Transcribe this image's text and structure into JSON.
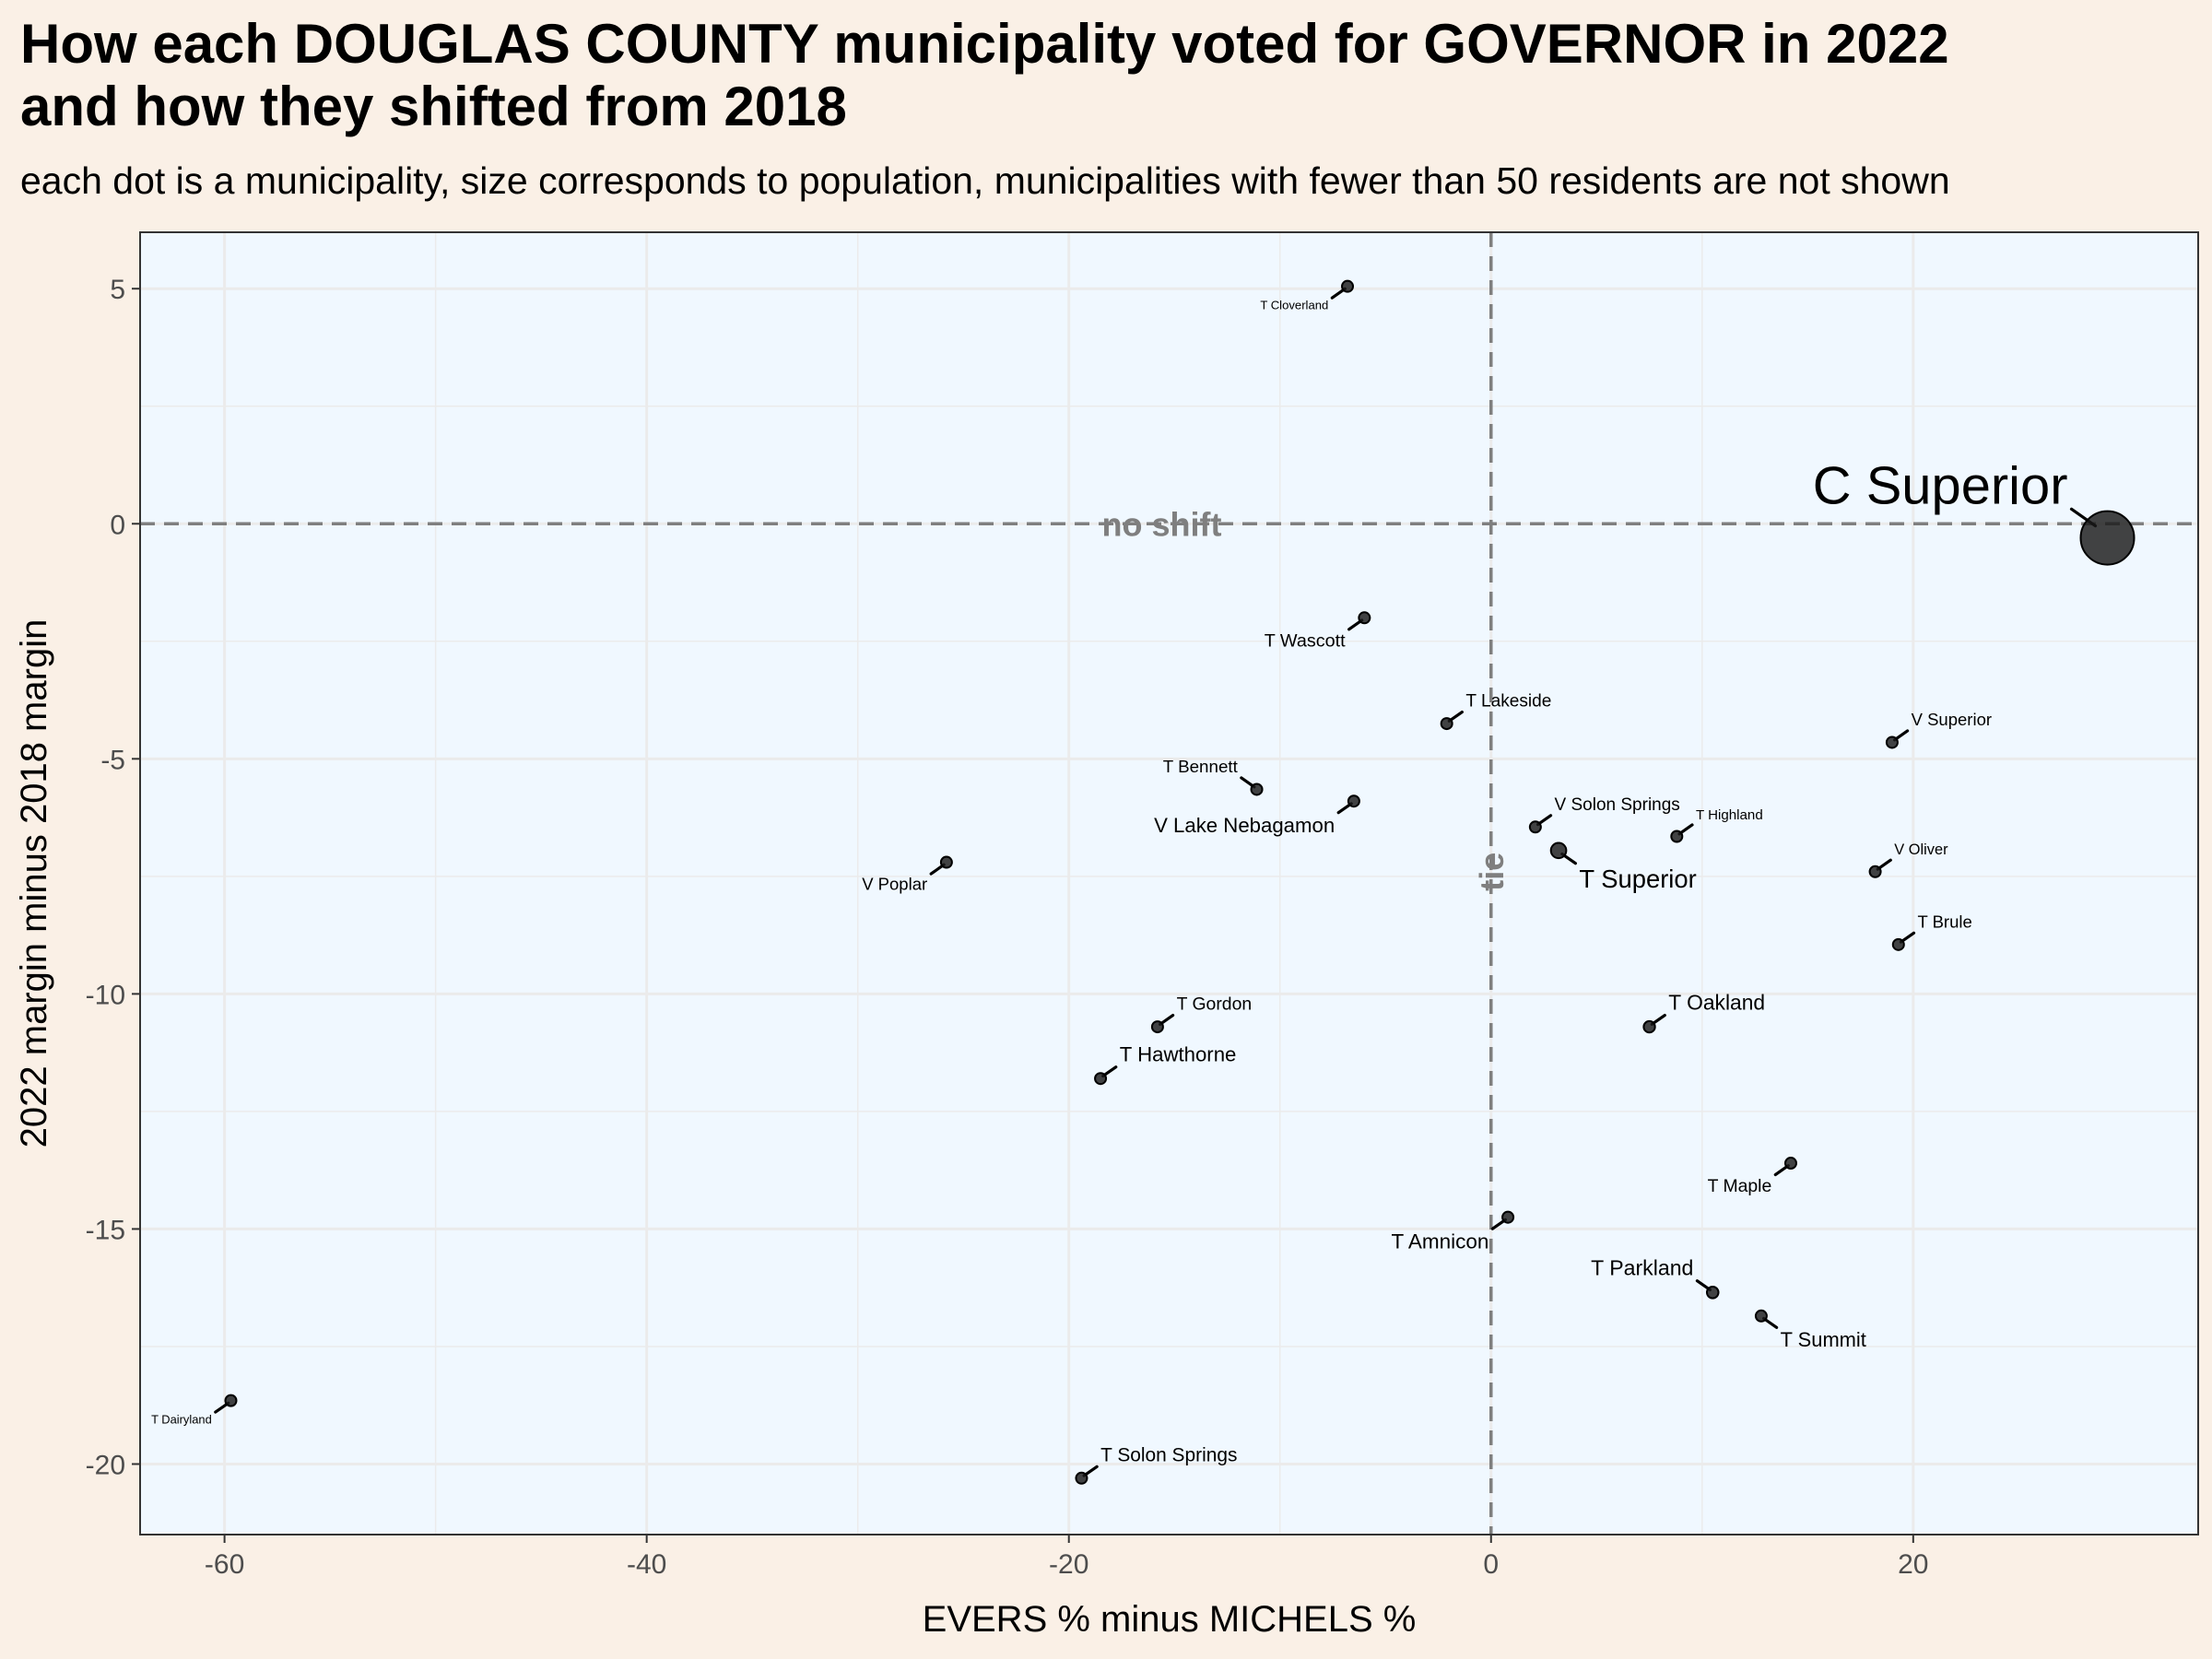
{
  "header": {
    "title_line1": "How each DOUGLAS COUNTY municipality voted for GOVERNOR in 2022",
    "title_line2": "and how they shifted from 2018",
    "subtitle": "each dot is a municipality, size corresponds to population, municipalities with fewer than 50 residents are not shown"
  },
  "colors": {
    "page_background": "#faf0e6",
    "panel_background": "#f0f8ff",
    "grid": "#ebebeb",
    "point": "#1a1a1a",
    "reference_line": "#7f7f7f"
  },
  "chart_data": {
    "type": "scatter",
    "title": "How each DOUGLAS COUNTY municipality voted for GOVERNOR in 2022 and how they shifted from 2018",
    "subtitle": "each dot is a municipality, size corresponds to population, municipalities with fewer than 50 residents are not shown",
    "xlabel": "EVERS % minus MICHELS %",
    "ylabel": "2022 margin minus 2018 margin",
    "xlim": [
      -64,
      33.5
    ],
    "ylim": [
      -21.5,
      6.2
    ],
    "xticks": [
      -60,
      -40,
      -20,
      0,
      20
    ],
    "xtick_labels": [
      "-60",
      "-40",
      "-20",
      "0",
      "20"
    ],
    "yticks": [
      5,
      0,
      -5,
      -10,
      -15,
      -20
    ],
    "ytick_labels": [
      "5",
      "0",
      "-5",
      "-10",
      "-15",
      "-20"
    ],
    "grid": true,
    "reference_lines": [
      {
        "axis": "y",
        "value": 0,
        "label": "no shift"
      },
      {
        "axis": "x",
        "value": 0,
        "label": "tie"
      }
    ],
    "points": [
      {
        "name": "T Cloverland",
        "x": -6.8,
        "y": 5.05,
        "pop": 190,
        "label_pos": "bottom-left"
      },
      {
        "name": "C Superior",
        "x": 29.2,
        "y": -0.3,
        "pop": 26700,
        "label_pos": "top-left"
      },
      {
        "name": "T Wascott",
        "x": -6.0,
        "y": -2.0,
        "pop": 750,
        "label_pos": "bottom-left"
      },
      {
        "name": "T Lakeside",
        "x": -2.1,
        "y": -4.25,
        "pop": 660,
        "label_pos": "top-right"
      },
      {
        "name": "V Superior",
        "x": 19.0,
        "y": -4.65,
        "pop": 600,
        "label_pos": "top-right"
      },
      {
        "name": "T Bennett",
        "x": -11.1,
        "y": -5.65,
        "pop": 630,
        "label_pos": "top-left"
      },
      {
        "name": "V Lake Nebagamon",
        "x": -6.5,
        "y": -5.9,
        "pop": 1100,
        "label_pos": "bottom-left"
      },
      {
        "name": "V Solon Springs",
        "x": 2.1,
        "y": -6.45,
        "pop": 650,
        "label_pos": "top-right"
      },
      {
        "name": "T Highland",
        "x": 8.8,
        "y": -6.65,
        "pop": 300,
        "label_pos": "top-right"
      },
      {
        "name": "T Superior",
        "x": 3.2,
        "y": -6.95,
        "pop": 2200,
        "label_pos": "bottom-right"
      },
      {
        "name": "V Poplar",
        "x": -25.8,
        "y": -7.2,
        "pop": 600,
        "label_pos": "bottom-left"
      },
      {
        "name": "V Oliver",
        "x": 18.2,
        "y": -7.4,
        "pop": 400,
        "label_pos": "top-right"
      },
      {
        "name": "T Brule",
        "x": 19.3,
        "y": -8.95,
        "pop": 600,
        "label_pos": "top-right"
      },
      {
        "name": "T Oakland",
        "x": 7.5,
        "y": -10.7,
        "pop": 1200,
        "label_pos": "top-right"
      },
      {
        "name": "T Gordon",
        "x": -15.8,
        "y": -10.7,
        "pop": 700,
        "label_pos": "top-right"
      },
      {
        "name": "T Hawthorne",
        "x": -18.5,
        "y": -11.8,
        "pop": 1100,
        "label_pos": "top-right"
      },
      {
        "name": "T Maple",
        "x": 14.2,
        "y": -13.6,
        "pop": 700,
        "label_pos": "bottom-left"
      },
      {
        "name": "T Amnicon",
        "x": 0.8,
        "y": -14.75,
        "pop": 1150,
        "label_pos": "bottom-left"
      },
      {
        "name": "T Parkland",
        "x": 10.5,
        "y": -16.35,
        "pop": 1250,
        "label_pos": "top-left"
      },
      {
        "name": "T Summit",
        "x": 12.8,
        "y": -16.85,
        "pop": 1050,
        "label_pos": "bottom-right"
      },
      {
        "name": "T Dairyland",
        "x": -59.7,
        "y": -18.65,
        "pop": 180,
        "label_pos": "bottom-left"
      },
      {
        "name": "T Solon Springs",
        "x": -19.4,
        "y": -20.3,
        "pop": 900,
        "label_pos": "top-right"
      }
    ]
  }
}
